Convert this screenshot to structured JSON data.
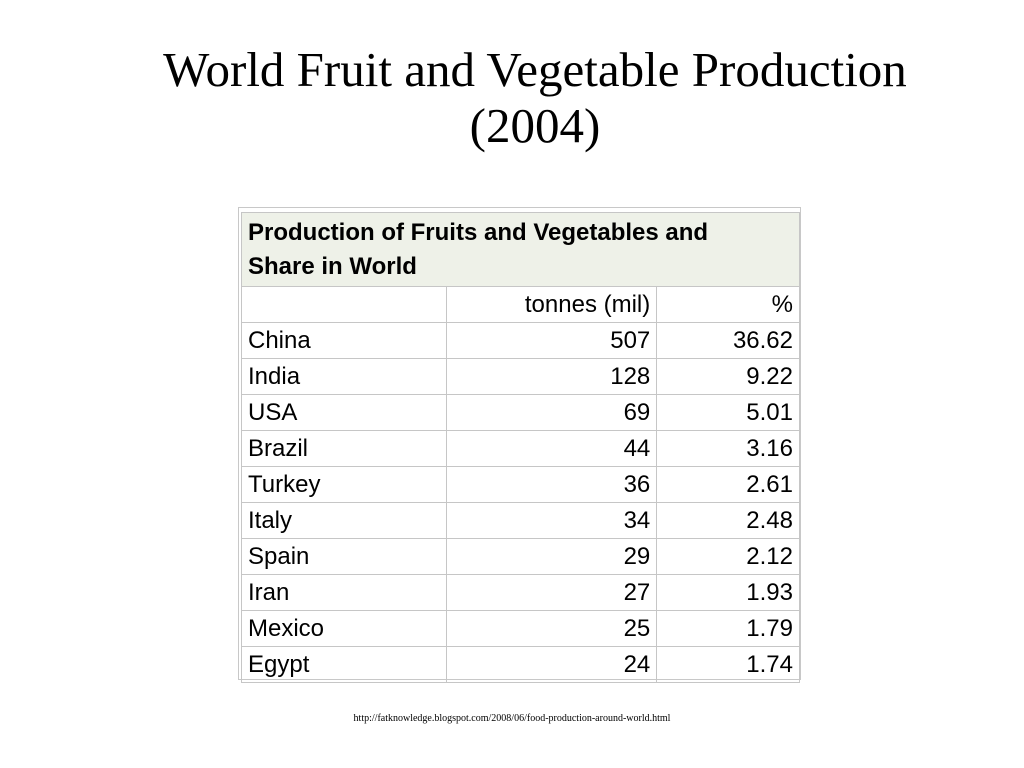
{
  "slide": {
    "title_line1": "World Fruit and Vegetable Production",
    "title_line2": "(2004)",
    "source_url": "http://fatknowledge.blogspot.com/2008/06/food-production-around-world.html"
  },
  "table": {
    "caption_line1": "Production of Fruits and Vegetables and",
    "caption_line2": "Share in World",
    "headers": [
      "",
      "tonnes (mil)",
      "%"
    ],
    "rows": [
      {
        "country": "China",
        "tonnes": "507",
        "percent": "36.62"
      },
      {
        "country": "India",
        "tonnes": "128",
        "percent": "9.22"
      },
      {
        "country": "USA",
        "tonnes": "69",
        "percent": "5.01"
      },
      {
        "country": "Brazil",
        "tonnes": "44",
        "percent": "3.16"
      },
      {
        "country": "Turkey",
        "tonnes": "36",
        "percent": "2.61"
      },
      {
        "country": "Italy",
        "tonnes": "34",
        "percent": "2.48"
      },
      {
        "country": "Spain",
        "tonnes": "29",
        "percent": "2.12"
      },
      {
        "country": "Iran",
        "tonnes": "27",
        "percent": "1.93"
      },
      {
        "country": "Mexico",
        "tonnes": "25",
        "percent": "1.79"
      },
      {
        "country": "Egypt",
        "tonnes": "24",
        "percent": "1.74"
      }
    ]
  },
  "colors": {
    "caption_background": "#eef1e8",
    "grid_lines": "#c6c6c6"
  }
}
